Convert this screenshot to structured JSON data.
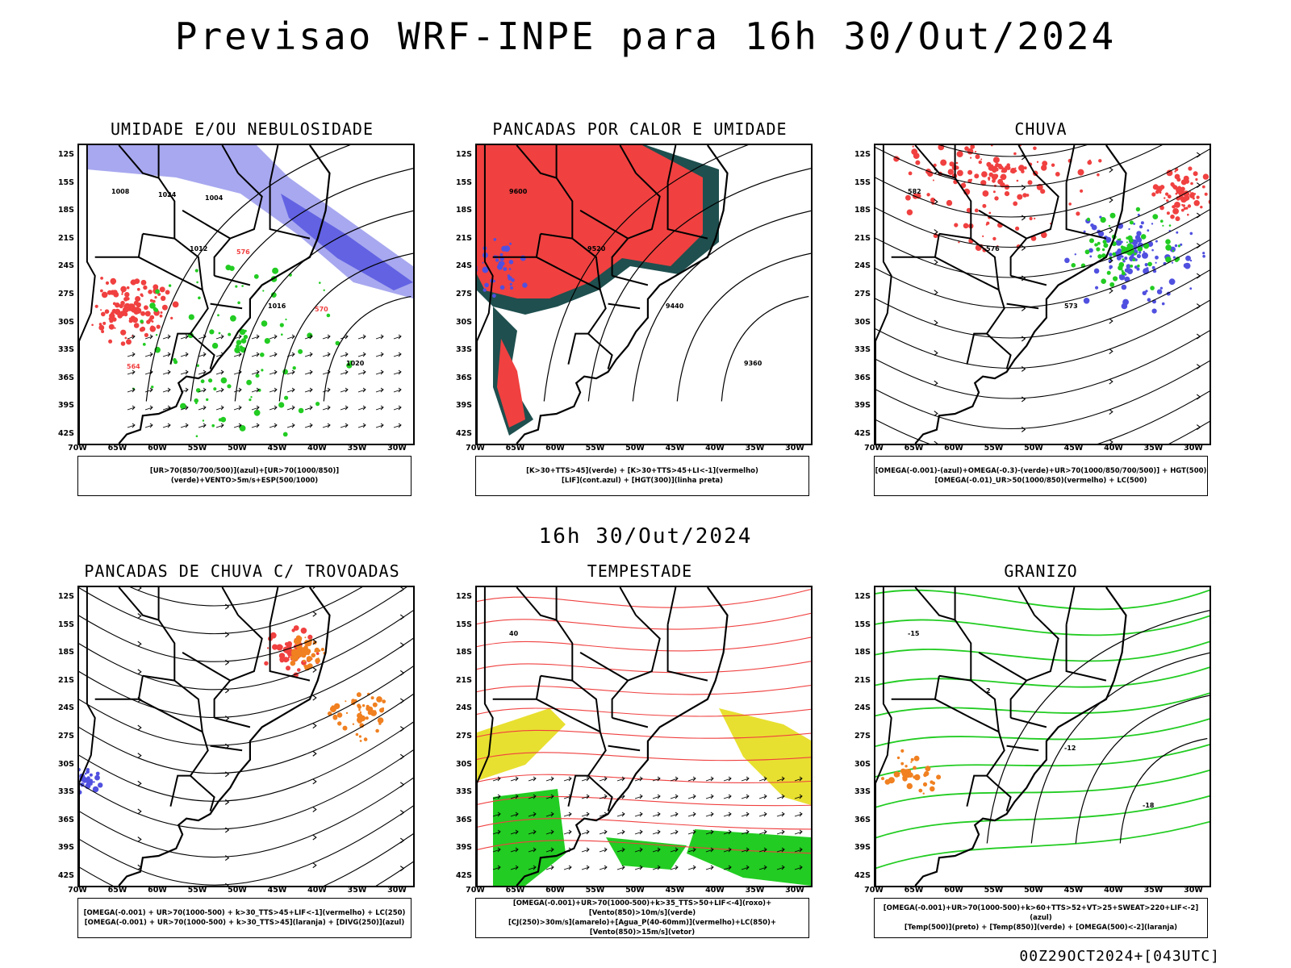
{
  "header": {
    "title": "Previsao WRF-INPE  para 16h 30/Out/2024",
    "mid_title": "16h 30/Out/2024",
    "footer": "00Z29OCT2024+[043UTC]"
  },
  "axes": {
    "lat_labels": [
      "12S",
      "15S",
      "18S",
      "21S",
      "24S",
      "27S",
      "30S",
      "33S",
      "36S",
      "39S",
      "42S"
    ],
    "lon_labels": [
      "70W",
      "65W",
      "60W",
      "55W",
      "50W",
      "45W",
      "40W",
      "35W",
      "30W"
    ]
  },
  "colors": {
    "blue_shade": "#a8a8f0",
    "blue_dark": "#5050e0",
    "green": "#22cc22",
    "red": "#f04040",
    "teal": "#1f4f4f",
    "orange": "#f08020",
    "yellow": "#e8e030",
    "purple": "#9010c0"
  },
  "panels": [
    {
      "id": "umidade",
      "title": "UMIDADE E/OU NEBULOSIDADE",
      "legend": [
        "[UR>70(850/700/500)](azul)+[UR>70(1000/850)](verde)+VENTO>5m/s+ESP(500/1000)"
      ],
      "contour_labels": [
        "1008",
        "1012",
        "1016",
        "1020",
        "1024",
        "576",
        "570",
        "564",
        "1004"
      ]
    },
    {
      "id": "pancadas-calor",
      "title": "PANCADAS POR CALOR E UMIDADE",
      "legend": [
        "[K>30+TTS>45](verde) + [K>30+TTS>45+LI<-1](vermelho)",
        "[LIF](cont.azul) + [HGT(300)](linha preta)"
      ],
      "contour_labels": [
        "9600",
        "9520",
        "9440",
        "9360"
      ]
    },
    {
      "id": "chuva",
      "title": "CHUVA",
      "legend": [
        "[OMEGA(-0.001)-(azul)+OMEGA(-0.3)-(verde)+UR>70(1000/850/700/500)] + HGT(500)",
        "[OMEGA(-0.01)_UR>50(1000/850)(vermelho) + LC(500)"
      ],
      "contour_labels": [
        "582",
        "576",
        "573"
      ]
    },
    {
      "id": "trovoadas",
      "title": "PANCADAS DE CHUVA C/ TROVOADAS",
      "legend": [
        "[OMEGA(-0.001) + UR>70(1000-500) + k>30_TTS>45+LIF<-1](vermelho) + LC(250)",
        "[OMEGA(-0.001) + UR>70(1000-500) + k>30_TTS>45](laranja) + [DIVG(250)](azul)"
      ],
      "contour_labels": []
    },
    {
      "id": "tempestade",
      "title": "TEMPESTADE",
      "legend": [
        "[OMEGA(-0.001)+UR>70(1000-500)+k>35_TTS>50+LIF<-4](roxo)+[Vento(850)>10m/s](verde)",
        "[CJ(250)>30m/s](amarelo)+[Agua_P(40-60mm)](vermelho)+LC(850)+[Vento(850)>15m/s](vetor)"
      ],
      "contour_labels": [
        "40"
      ]
    },
    {
      "id": "granizo",
      "title": "GRANIZO",
      "legend": [
        "[OMEGA(-0.001)+UR>70(1000-500)+k>60+TTS>52+VT>25+SWEAT>220+LIF<-2](azul)",
        "[Temp(500)](preto) + [Temp(850)](verde) + [OMEGA(500)<-2](laranja)"
      ],
      "contour_labels": [
        "-15",
        "2",
        "-12",
        "-18"
      ]
    }
  ]
}
